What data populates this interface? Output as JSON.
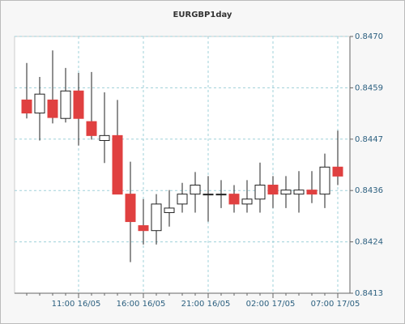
{
  "chart_data": {
    "type": "candlestick",
    "title": "EURGBP1day",
    "categories": [
      null,
      null,
      null,
      null,
      "11:00 16/05",
      null,
      null,
      null,
      null,
      "16:00 16/05",
      null,
      null,
      null,
      null,
      "21:00 16/05",
      null,
      null,
      null,
      null,
      "02:00 17/05",
      null,
      null,
      null,
      null,
      "07:00 17/05"
    ],
    "open": [
      0.84559,
      0.8453,
      0.84559,
      0.84518,
      0.84579,
      0.84511,
      0.84469,
      0.8448,
      0.8435,
      0.8428,
      0.84269,
      0.84309,
      0.84328,
      0.8435,
      0.8435,
      0.8435,
      0.8435,
      0.84328,
      0.84339,
      0.8437,
      0.8435,
      0.8435,
      0.84359,
      0.8435,
      0.8441
    ],
    "high": [
      0.84641,
      0.8461,
      0.84669,
      0.8463,
      0.84619,
      0.84621,
      0.84576,
      0.84559,
      0.84422,
      0.84339,
      0.8435,
      0.84359,
      0.84375,
      0.84399,
      0.8439,
      0.84381,
      0.8437,
      0.84381,
      0.8442,
      0.8439,
      0.8439,
      0.84401,
      0.84401,
      0.8444,
      0.84491
    ],
    "low": [
      0.84518,
      0.84469,
      0.84507,
      0.84509,
      0.84458,
      0.84471,
      0.84419,
      0.8435,
      0.84199,
      0.84238,
      0.84238,
      0.84278,
      0.84309,
      0.84309,
      0.84289,
      0.84319,
      0.84309,
      0.84309,
      0.84309,
      0.84319,
      0.84319,
      0.84309,
      0.8433,
      0.84319,
      0.8437
    ],
    "close": [
      0.8453,
      0.84572,
      0.8452,
      0.84579,
      0.84518,
      0.8448,
      0.8448,
      0.8435,
      0.84289,
      0.84269,
      0.84328,
      0.84319,
      0.8435,
      0.8437,
      0.8435,
      0.8435,
      0.84328,
      0.84339,
      0.8437,
      0.8435,
      0.84359,
      0.84359,
      0.8435,
      0.8441,
      0.8439
    ],
    "up_color": "#ffffff",
    "down_color": "#e04040",
    "ylim": [
      0.8413,
      0.847
    ],
    "yticks": [
      {
        "value": 0.8413,
        "label": "0.8413"
      },
      {
        "value": 0.84244,
        "label": "0.8424"
      },
      {
        "value": 0.84358,
        "label": "0.8436"
      },
      {
        "value": 0.84472,
        "label": "0.8447"
      },
      {
        "value": 0.84586,
        "label": "0.8459"
      },
      {
        "value": 0.847,
        "label": "0.8470"
      }
    ],
    "grid": true
  }
}
